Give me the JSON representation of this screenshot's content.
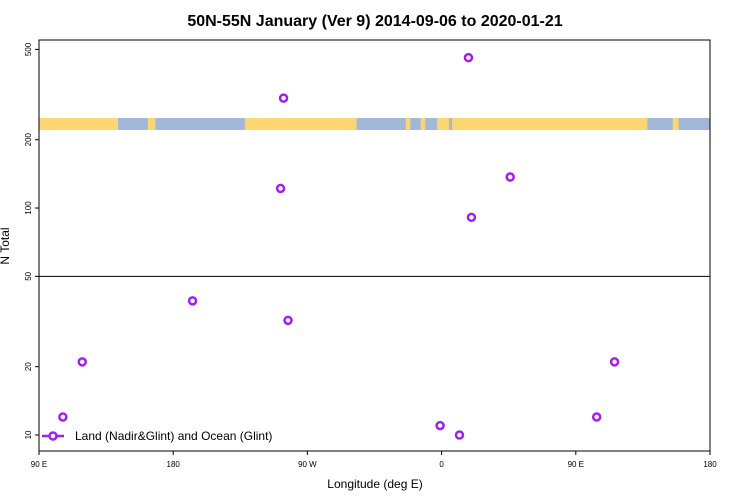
{
  "chart_data": {
    "type": "scatter",
    "title": "50N-55N January (Ver 9)   2014-09-06 to 2020-01-21",
    "xlabel": "Longitude (deg E)",
    "ylabel": "N Total",
    "x_ticks": [
      {
        "value": 90,
        "label": "90 E"
      },
      {
        "value": 180,
        "label": "180"
      },
      {
        "value": 270,
        "label": "90 W"
      },
      {
        "value": 360,
        "label": "0"
      },
      {
        "value": 450,
        "label": "90 E"
      },
      {
        "value": 540,
        "label": "180"
      }
    ],
    "y_ticks": [
      10,
      20,
      50,
      100,
      200,
      500
    ],
    "xlim": [
      90,
      540
    ],
    "ylim": [
      8.5,
      550
    ],
    "y_scale": "log",
    "grid": false,
    "reference_line": 50,
    "legend": {
      "position": "bottom-left"
    },
    "series": [
      {
        "name": "Land (Nadir&Glint) and Ocean (Glint)",
        "color": "#a020f0",
        "marker": "open-circle",
        "points": [
          {
            "x": 106,
            "y": 12
          },
          {
            "x": 119,
            "y": 21
          },
          {
            "x": 193,
            "y": 39
          },
          {
            "x": 252,
            "y": 122
          },
          {
            "x": 254,
            "y": 305
          },
          {
            "x": 257,
            "y": 32
          },
          {
            "x": 359,
            "y": 11
          },
          {
            "x": 372,
            "y": 10
          },
          {
            "x": 378,
            "y": 460
          },
          {
            "x": 380,
            "y": 91
          },
          {
            "x": 406,
            "y": 137
          },
          {
            "x": 464,
            "y": 12
          },
          {
            "x": 476,
            "y": 21
          }
        ]
      }
    ],
    "land_strip": {
      "land_color": "#fcd672",
      "ocean_color": "#a3b8d8",
      "land_ranges": [
        [
          90,
          143
        ],
        [
          163,
          168
        ],
        [
          228,
          303
        ],
        [
          336,
          339
        ],
        [
          346,
          349
        ],
        [
          357,
          365
        ],
        [
          367,
          498
        ],
        [
          515,
          519
        ]
      ]
    }
  }
}
